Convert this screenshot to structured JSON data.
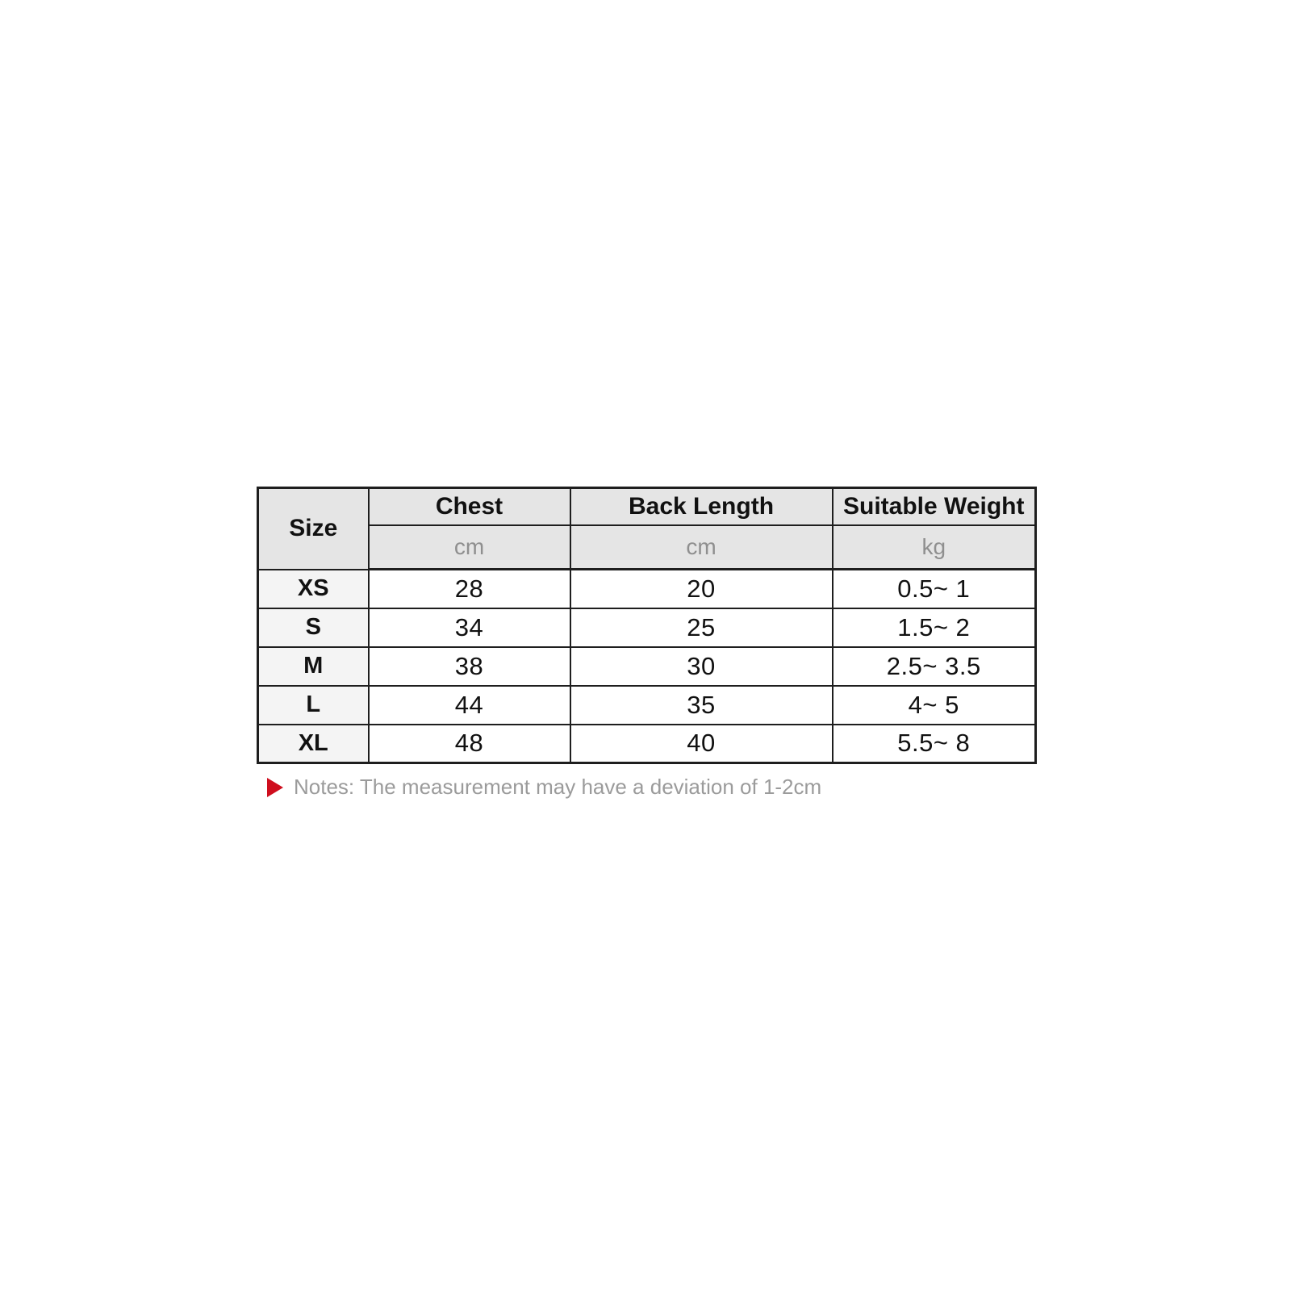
{
  "chart_data": {
    "type": "table",
    "header": {
      "size_label": "Size",
      "columns": [
        {
          "label": "Chest",
          "unit": "cm"
        },
        {
          "label": "Back Length",
          "unit": "cm"
        },
        {
          "label": "Suitable Weight",
          "unit": "kg"
        }
      ]
    },
    "rows": [
      {
        "size": "XS",
        "chest": "28",
        "back_length": "20",
        "suitable_weight": "0.5~ 1"
      },
      {
        "size": "S",
        "chest": "34",
        "back_length": "25",
        "suitable_weight": "1.5~ 2"
      },
      {
        "size": "M",
        "chest": "38",
        "back_length": "30",
        "suitable_weight": "2.5~ 3.5"
      },
      {
        "size": "L",
        "chest": "44",
        "back_length": "35",
        "suitable_weight": "4~ 5"
      },
      {
        "size": "XL",
        "chest": "48",
        "back_length": "40",
        "suitable_weight": "5.5~ 8"
      }
    ]
  },
  "note": {
    "icon": "red-triangle",
    "text": "Notes: The measurement may have a deviation of 1-2cm"
  },
  "colors": {
    "page_bg": "#ffffff",
    "header_bg": "#e5e5e5",
    "size_col_bg": "#f4f4f4",
    "cell_bg": "#ffffff",
    "border": "#1e1e1e",
    "header_text": "#111111",
    "unit_text": "#8f8f8f",
    "value_text": "#111111",
    "note_text": "#9b9b9b",
    "note_marker": "#cf0e1e"
  }
}
